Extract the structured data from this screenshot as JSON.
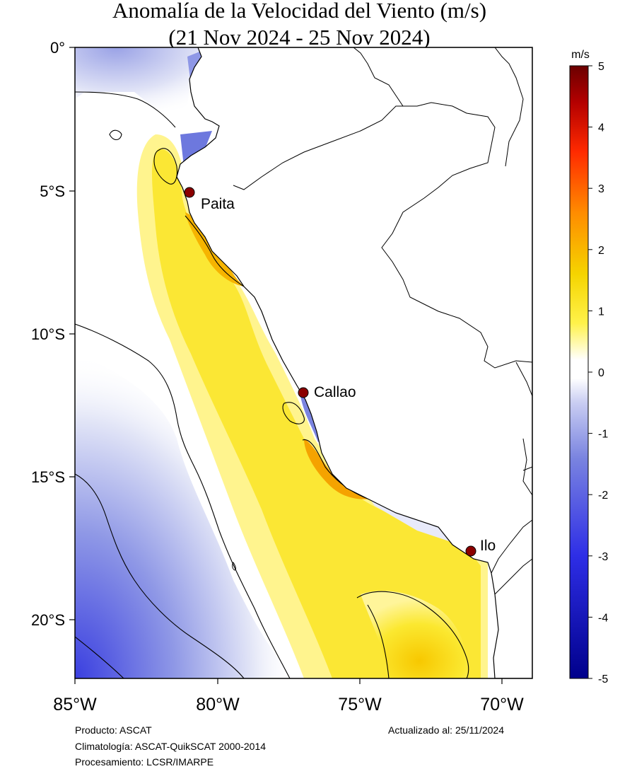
{
  "title": {
    "line1": "Anomalía de la Velocidad del Viento (m/s)",
    "line2": "(21 Nov 2024 - 25 Nov 2024)"
  },
  "map": {
    "lat_labels": [
      "0°",
      "5°S",
      "10°S",
      "15°S",
      "20°S"
    ],
    "lon_labels": [
      "85°W",
      "80°W",
      "75°W",
      "70°W"
    ],
    "extent": {
      "lon_min": -85,
      "lon_max": -68.9,
      "lat_min": -22.1,
      "lat_max": 0.1
    },
    "cities": [
      {
        "name": "Paita",
        "lon": -81.1,
        "lat": -5.05
      },
      {
        "name": "Callao",
        "lon": -77.15,
        "lat": -12.05
      },
      {
        "name": "Ilo",
        "lon": -71.35,
        "lat": -17.65
      }
    ],
    "marker_color": "#8b0000"
  },
  "colorbar": {
    "unit": "m/s",
    "ticks": [
      "5",
      "4",
      "3",
      "2",
      "1",
      "0",
      "-1",
      "-2",
      "-3",
      "-4",
      "-5"
    ],
    "range": [
      -5,
      5
    ],
    "colors": [
      "#00008b",
      "#2e2ee6",
      "#7a84e0",
      "#c9cdf2",
      "#ffffff",
      "#ffffff",
      "#fff24a",
      "#f5d400",
      "#ff8c00",
      "#ff2a00",
      "#b40000",
      "#6b0000"
    ]
  },
  "footer": {
    "product": "Producto: ASCAT",
    "climatology": "Climatología: ASCAT-QuikSCAT 2000-2014",
    "processing": "Procesamiento: LCSR/IMARPE",
    "updated": "Actualizado al: 25/11/2024"
  }
}
